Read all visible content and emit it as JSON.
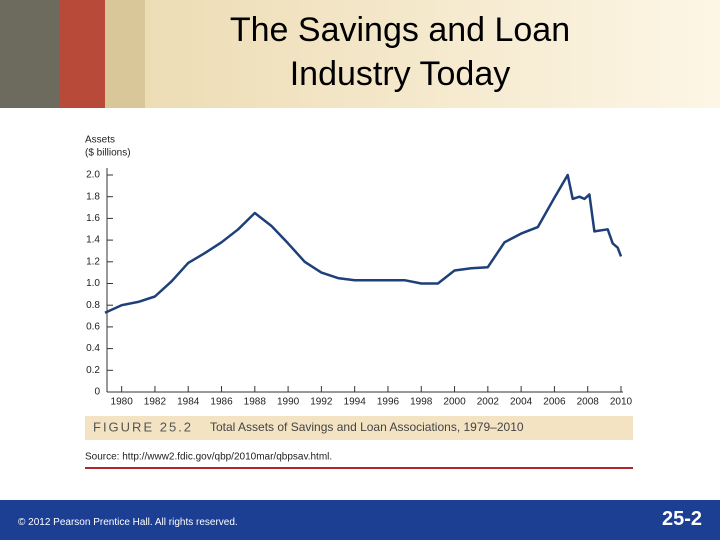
{
  "slide": {
    "title": "The Savings and Loan Industry Today",
    "footer": "© 2012 Pearson Prentice Hall. All rights reserved.",
    "page": "25-2"
  },
  "chart_data": {
    "type": "line",
    "ylabel": [
      "Assets",
      "($ billions)"
    ],
    "figure": "FIGURE 25.2",
    "caption": "Total Assets of Savings and Loan Associations, 1979–2010",
    "source": "Source: http://www2.fdic.gov/qbp/2010mar/qbpsav.html.",
    "color": "#1f3f7a",
    "x": [
      1979,
      1980,
      1981,
      1982,
      1983,
      1984,
      1985,
      1986,
      1987,
      1988,
      1989,
      1990,
      1991,
      1992,
      1993,
      1994,
      1995,
      1996,
      1997,
      1998,
      1999,
      2000,
      2001,
      2002,
      2003,
      2004,
      2005,
      2006,
      2006.8,
      2007.1,
      2007.5,
      2007.8,
      2008.1,
      2008.4,
      2009.2,
      2009.5,
      2009.8,
      2010
    ],
    "values": [
      0.73,
      0.8,
      0.83,
      0.88,
      1.02,
      1.19,
      1.28,
      1.38,
      1.5,
      1.65,
      1.53,
      1.37,
      1.2,
      1.1,
      1.05,
      1.03,
      1.03,
      1.03,
      1.03,
      1.0,
      1.0,
      1.12,
      1.14,
      1.15,
      1.38,
      1.46,
      1.52,
      1.79,
      2.0,
      1.78,
      1.8,
      1.78,
      1.82,
      1.48,
      1.5,
      1.37,
      1.33,
      1.25
    ],
    "xlim": [
      1979,
      2010
    ],
    "xticks": [
      1980,
      1982,
      1984,
      1986,
      1988,
      1990,
      1992,
      1994,
      1996,
      1998,
      2000,
      2002,
      2004,
      2006,
      2008,
      2010
    ],
    "ylim": [
      0,
      2
    ],
    "yticks": [
      0,
      0.2,
      0.4,
      0.6,
      0.8,
      {
        "value": 1,
        "label": "1.0"
      },
      1.2,
      1.4,
      1.6,
      1.8,
      {
        "value": 2,
        "label": "2.0"
      }
    ]
  }
}
